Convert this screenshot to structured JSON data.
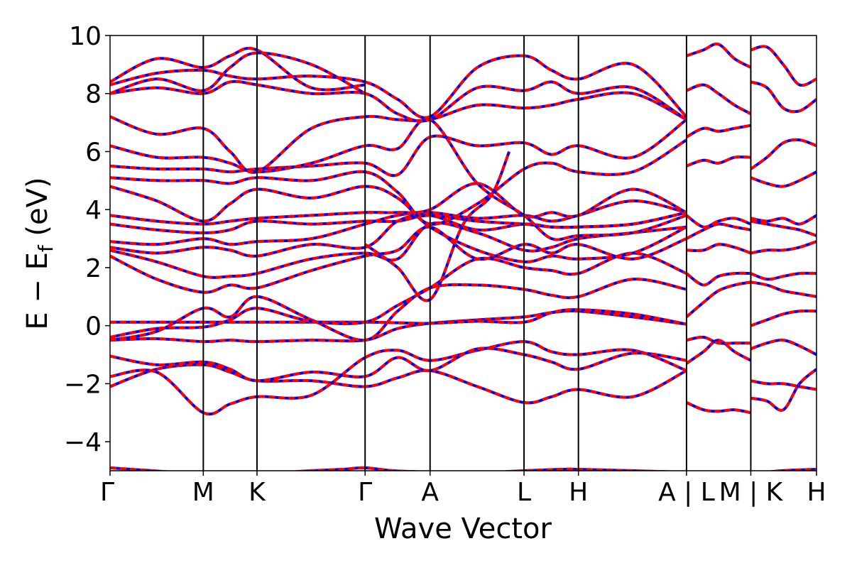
{
  "chart_data": {
    "type": "line",
    "title": "",
    "xlabel": "Wave Vector",
    "ylabel_main": "E − E",
    "ylabel_sub": "f",
    "ylabel_unit": " (eV)",
    "ylim": [
      -5,
      10
    ],
    "yticks": [
      {
        "value": -4,
        "label": "−4"
      },
      {
        "value": -2,
        "label": "−2"
      },
      {
        "value": 0,
        "label": "0"
      },
      {
        "value": 2,
        "label": "2"
      },
      {
        "value": 4,
        "label": "4"
      },
      {
        "value": 6,
        "label": "6"
      },
      {
        "value": 8,
        "label": "8"
      },
      {
        "value": 10,
        "label": "10"
      }
    ],
    "xlim": [
      0,
      100
    ],
    "kpoints": [
      {
        "label": "Γ",
        "x": 0
      },
      {
        "label": "M",
        "x": 13.2
      },
      {
        "label": "K",
        "x": 20.8
      },
      {
        "label": "Γ",
        "x": 36.1
      },
      {
        "label": "A",
        "x": 45.3
      },
      {
        "label": "L",
        "x": 58.6
      },
      {
        "label": "H",
        "x": 66.3
      },
      {
        "label": "A | L",
        "x": 81.6
      },
      {
        "label": "M | K",
        "x": 90.7
      },
      {
        "label": "H",
        "x": 100
      }
    ],
    "colors": {
      "spin_up": "#0000ff",
      "spin_down": "#ff0000",
      "kline": "#000000"
    },
    "series": [
      {
        "name": "",
        "x": [
          0,
          6.6,
          13.2,
          17,
          20.8,
          28.5,
          36.1,
          40.7,
          45.3,
          52,
          58.6,
          62.5,
          66.3,
          74,
          81.6
        ],
        "y": [
          -2.1,
          -1.5,
          -1.35,
          -1.6,
          -1.9,
          -1.9,
          -2.1,
          -1.8,
          -1.55,
          -2.1,
          -2.65,
          -2.45,
          -2.2,
          -2.45,
          -1.55
        ]
      },
      {
        "name": "",
        "x": [
          0,
          6.6,
          13.2,
          17,
          20.8,
          28.5,
          36.1,
          40.7,
          45.3,
          52,
          58.6,
          62.5,
          66.3,
          74,
          81.6
        ],
        "y": [
          -1.75,
          -1.6,
          -3.0,
          -2.7,
          -2.45,
          -2.4,
          -1.1,
          -0.85,
          -1.2,
          -0.85,
          -0.55,
          -0.9,
          -1.0,
          -0.85,
          -1.55
        ]
      },
      {
        "name": "",
        "x": [
          0,
          6.6,
          13.2,
          17,
          20.8,
          28.5,
          36.1,
          40.7,
          45.3,
          52,
          58.6,
          62.5,
          66.3,
          74,
          81.6
        ],
        "y": [
          -1.05,
          -1.35,
          -1.25,
          -1.5,
          -1.9,
          -1.6,
          -1.75,
          -1.1,
          -1.55,
          -0.8,
          -1.0,
          -1.25,
          -1.5,
          -0.95,
          -1.2
        ]
      },
      {
        "name": "",
        "x": [
          0,
          6.6,
          13.2,
          17,
          20.8,
          28.5,
          36.1,
          40.7,
          45.3,
          52,
          58.6,
          62.5,
          66.3,
          74,
          81.6
        ],
        "y": [
          -0.5,
          -0.45,
          -0.55,
          -0.5,
          -0.55,
          -0.5,
          -0.5,
          -0.1,
          0.08,
          0.2,
          0.3,
          0.45,
          0.5,
          0.3,
          0.05
        ]
      },
      {
        "name": "",
        "x": [
          0,
          6.6,
          13.2,
          17,
          20.8,
          28.5,
          36.1,
          40.7,
          45.3,
          52,
          58.6,
          62.5,
          66.3,
          74,
          81.6
        ],
        "y": [
          0.12,
          0.12,
          0.12,
          0.12,
          0.12,
          0.12,
          0.12,
          0.1,
          0.08,
          0.15,
          0.12,
          0.45,
          0.55,
          0.4,
          0.05
        ]
      },
      {
        "name": "",
        "x": [
          0,
          6.6,
          13.2,
          17,
          20.8,
          28.5,
          36.1,
          40.7,
          45.3,
          52,
          58.6,
          62.5,
          66.3,
          74,
          81.6
        ],
        "y": [
          -0.5,
          -0.2,
          0.6,
          0.3,
          1.0,
          0.2,
          -0.5,
          0.5,
          1.3,
          1.4,
          1.25,
          1.05,
          1.0,
          1.6,
          1.25
        ]
      },
      {
        "name": "",
        "x": [
          0,
          6.6,
          13.2,
          17,
          20.8,
          28.5,
          36.1,
          40.7,
          45.3,
          52,
          58.6,
          62.5,
          66.3,
          74,
          81.6
        ],
        "y": [
          -0.4,
          -0.1,
          -0.05,
          0.2,
          0.6,
          0.15,
          0.12,
          0.7,
          1.3,
          2.3,
          2.0,
          1.9,
          1.8,
          2.5,
          1.8
        ]
      },
      {
        "name": "",
        "x": [
          0,
          6.6,
          13.2,
          17,
          20.8,
          28.5,
          36.1,
          40.7,
          45.3,
          52,
          58.6,
          62.5,
          66.3,
          74,
          81.6
        ],
        "y": [
          2.4,
          1.6,
          1.15,
          1.4,
          1.3,
          1.9,
          2.4,
          2.6,
          3.4,
          2.3,
          2.8,
          2.5,
          2.8,
          2.3,
          3.0
        ]
      },
      {
        "name": "",
        "x": [
          0,
          6.6,
          13.2,
          17,
          20.8,
          28.5,
          36.1,
          40.7,
          45.3,
          52,
          58.6,
          62.5,
          66.3,
          74,
          81.6
        ],
        "y": [
          2.6,
          2.2,
          1.7,
          1.7,
          1.8,
          2.3,
          2.5,
          2.3,
          3.5,
          3.2,
          2.6,
          2.7,
          3.0,
          3.2,
          3.4
        ]
      },
      {
        "name": "",
        "x": [
          0,
          6.6,
          13.2,
          17,
          20.8,
          28.5,
          36.1,
          40.7,
          45.3,
          52,
          58.6,
          62.5,
          66.3,
          74,
          81.6
        ],
        "y": [
          2.7,
          2.5,
          2.7,
          2.6,
          2.4,
          2.8,
          2.7,
          3.6,
          3.8,
          3.3,
          3.5,
          3.4,
          3.4,
          3.5,
          3.9
        ]
      },
      {
        "name": "",
        "x": [
          0,
          6.6,
          13.2,
          17,
          20.8,
          28.5,
          36.1,
          40.7,
          45.3,
          52,
          58.6,
          62.5,
          66.3,
          74,
          81.6
        ],
        "y": [
          2.9,
          2.8,
          3.0,
          2.8,
          2.9,
          3.0,
          3.5,
          3.8,
          3.9,
          3.7,
          3.8,
          3.6,
          3.8,
          4.3,
          3.9
        ]
      },
      {
        "name": "",
        "x": [
          0,
          6.6,
          13.2,
          17,
          20.8,
          28.5,
          36.1,
          40.7,
          45.3,
          52,
          58.6,
          62.5,
          66.3,
          74,
          81.6
        ],
        "y": [
          3.5,
          3.3,
          3.2,
          3.3,
          3.6,
          3.5,
          3.6,
          3.6,
          3.8,
          3.6,
          3.5,
          3.4,
          3.4,
          3.5,
          3.9
        ]
      },
      {
        "name": "",
        "x": [
          0,
          6.6,
          13.2,
          17,
          20.8,
          28.5,
          36.1,
          40.7,
          45.3,
          52,
          58.6,
          62.5,
          66.3,
          74,
          81.6
        ],
        "y": [
          3.8,
          3.6,
          3.5,
          3.6,
          3.7,
          3.8,
          3.9,
          3.9,
          4.0,
          4.9,
          3.8,
          3.9,
          3.8,
          4.7,
          3.9
        ]
      },
      {
        "name": "",
        "x": [
          0,
          6.6,
          13.2,
          17,
          20.8,
          28.5,
          36.1,
          40.7,
          45.3,
          52,
          58.6,
          62.5,
          66.3,
          74,
          81.6
        ],
        "y": [
          4.8,
          4.3,
          3.6,
          4.2,
          4.7,
          4.4,
          4.8,
          4.4,
          3.4,
          2.6,
          2.2,
          2.4,
          2.3,
          2.5,
          3.4
        ]
      },
      {
        "name": "",
        "x": [
          0,
          6.6,
          13.2,
          17,
          20.8,
          28.5,
          36.1,
          40.7,
          45.3,
          52,
          58.6,
          62.5,
          66.3,
          74,
          81.6
        ],
        "y": [
          5.1,
          5.0,
          5.0,
          4.9,
          5.1,
          5.0,
          5.3,
          4.6,
          3.5,
          4.2,
          5.4,
          5.6,
          5.3,
          5.3,
          6.4
        ]
      },
      {
        "name": "",
        "x": [
          0,
          6.6,
          13.2,
          17,
          20.8,
          28.5,
          36.1,
          40.7,
          45.3,
          52,
          58.6,
          62.5,
          66.3,
          74,
          81.6
        ],
        "y": [
          5.5,
          5.4,
          5.4,
          5.3,
          5.4,
          5.5,
          5.6,
          5.2,
          6.5,
          6.2,
          6.3,
          5.9,
          6.2,
          5.8,
          7.1
        ]
      },
      {
        "name": "",
        "x": [
          0,
          6.6,
          13.2,
          17,
          20.8,
          28.5,
          36.1,
          40.7,
          45.3,
          52,
          58.6,
          62.5,
          66.3,
          74,
          81.6
        ],
        "y": [
          6.2,
          5.8,
          5.8,
          5.6,
          5.3,
          5.6,
          6.2,
          6.1,
          7.1,
          4.9,
          3.8,
          3.0,
          3.1,
          3.2,
          3.8
        ]
      },
      {
        "name": "",
        "x": [
          0,
          6.6,
          13.2,
          17,
          20.8,
          28.5,
          36.1,
          40.7,
          45.3,
          52,
          58.6,
          62.5,
          66.3,
          74,
          81.6
        ],
        "y": [
          7.2,
          6.6,
          6.8,
          6.0,
          5.3,
          6.8,
          7.2,
          7.1,
          7.1,
          7.6,
          7.5,
          7.6,
          7.8,
          8.0,
          7.1
        ]
      },
      {
        "name": "",
        "x": [
          0,
          6.6,
          13.2,
          17,
          20.8,
          28.5,
          36.1,
          40.7,
          45.3,
          52,
          58.6,
          62.5,
          66.3,
          74,
          81.6
        ],
        "y": [
          8.0,
          8.2,
          8.0,
          8.4,
          8.3,
          8.0,
          8.0,
          7.3,
          7.1,
          8.2,
          8.1,
          8.4,
          8.0,
          8.2,
          7.1
        ]
      },
      {
        "name": "",
        "x": [
          0,
          6.6,
          13.2,
          17,
          20.8,
          28.5,
          36.1,
          40.7,
          45.3,
          52,
          58.6,
          62.5,
          66.3,
          74,
          81.6
        ],
        "y": [
          8.3,
          8.7,
          8.8,
          8.6,
          8.5,
          8.6,
          8.4,
          7.8,
          7.2,
          8.9,
          9.3,
          8.8,
          8.5,
          9.0,
          7.2
        ]
      },
      {
        "name": "",
        "x": [
          0,
          6.6,
          13.2,
          17,
          20.8,
          28.5,
          36.1
        ],
        "y": [
          8.4,
          9.2,
          8.9,
          9.3,
          9.5,
          8.2,
          8.3
        ]
      },
      {
        "name": "",
        "x": [
          0,
          6.6,
          13.2,
          17,
          20.8,
          28.5,
          36.1
        ],
        "y": [
          8.0,
          8.5,
          8.1,
          8.9,
          9.4,
          9.0,
          8.0
        ]
      },
      {
        "name": "",
        "x": [
          36.1,
          40.7,
          45.3,
          50,
          54,
          56.5
        ],
        "y": [
          2.8,
          2.0,
          0.9,
          3.5,
          4.5,
          6.0
        ]
      },
      {
        "name": "",
        "x": [
          81.6,
          84,
          86.1,
          88.4,
          90.7
        ],
        "y": [
          -2.65,
          -2.9,
          -2.95,
          -2.9,
          -3.0
        ]
      },
      {
        "name": "",
        "x": [
          81.6,
          84,
          86.1,
          88.4,
          90.7
        ],
        "y": [
          -1.3,
          -0.9,
          -0.5,
          -0.9,
          -1.2
        ]
      },
      {
        "name": "",
        "x": [
          81.6,
          84,
          86.1,
          88.4,
          90.7
        ],
        "y": [
          -0.5,
          -0.4,
          -0.6,
          -0.6,
          -0.6
        ]
      },
      {
        "name": "",
        "x": [
          81.6,
          84,
          86.1,
          88.4,
          90.7
        ],
        "y": [
          0.3,
          0.8,
          1.2,
          1.4,
          1.5
        ]
      },
      {
        "name": "",
        "x": [
          81.6,
          84,
          86.1,
          88.4,
          90.7
        ],
        "y": [
          1.8,
          1.4,
          1.7,
          1.8,
          1.8
        ]
      },
      {
        "name": "",
        "x": [
          81.6,
          84,
          86.1,
          88.4,
          90.7
        ],
        "y": [
          2.6,
          2.6,
          2.8,
          2.7,
          2.5
        ]
      },
      {
        "name": "",
        "x": [
          81.6,
          84,
          86.1,
          88.4,
          90.7
        ],
        "y": [
          3.0,
          3.3,
          3.5,
          3.4,
          3.3
        ]
      },
      {
        "name": "",
        "x": [
          81.6,
          84,
          86.1,
          88.4,
          90.7
        ],
        "y": [
          3.8,
          3.4,
          3.6,
          3.7,
          3.5
        ]
      },
      {
        "name": "",
        "x": [
          81.6,
          84,
          86.1,
          88.4,
          90.7
        ],
        "y": [
          5.5,
          5.7,
          5.6,
          5.8,
          5.8
        ]
      },
      {
        "name": "",
        "x": [
          81.6,
          84,
          86.1,
          88.4,
          90.7
        ],
        "y": [
          6.5,
          6.8,
          6.7,
          6.8,
          6.9
        ]
      },
      {
        "name": "",
        "x": [
          81.6,
          84,
          86.1,
          88.4,
          90.7
        ],
        "y": [
          8.1,
          8.3,
          8.0,
          7.6,
          7.3
        ]
      },
      {
        "name": "",
        "x": [
          81.6,
          84,
          86.1,
          88.4,
          90.7
        ],
        "y": [
          9.3,
          9.5,
          9.7,
          9.2,
          8.9
        ]
      },
      {
        "name": "",
        "x": [
          90.7,
          93,
          95.3,
          97.6,
          100
        ],
        "y": [
          -2.5,
          -2.6,
          -2.9,
          -2.0,
          -1.5
        ]
      },
      {
        "name": "",
        "x": [
          90.7,
          93,
          95.3,
          97.6,
          100
        ],
        "y": [
          -1.9,
          -2.0,
          -2.0,
          -2.1,
          -2.2
        ]
      },
      {
        "name": "",
        "x": [
          90.7,
          93,
          95.3,
          97.6,
          100
        ],
        "y": [
          -0.8,
          -0.6,
          -0.5,
          -0.7,
          -1.0
        ]
      },
      {
        "name": "",
        "x": [
          90.7,
          93,
          95.3,
          97.6,
          100
        ],
        "y": [
          0.0,
          0.2,
          0.4,
          0.5,
          0.5
        ]
      },
      {
        "name": "",
        "x": [
          90.7,
          93,
          95.3,
          97.6,
          100
        ],
        "y": [
          1.5,
          1.4,
          1.2,
          1.1,
          1.0
        ]
      },
      {
        "name": "",
        "x": [
          90.7,
          93,
          95.3,
          97.6,
          100
        ],
        "y": [
          1.8,
          1.6,
          1.7,
          1.8,
          1.8
        ]
      },
      {
        "name": "",
        "x": [
          90.7,
          93,
          95.3,
          97.6,
          100
        ],
        "y": [
          2.5,
          2.6,
          2.6,
          2.7,
          2.9
        ]
      },
      {
        "name": "",
        "x": [
          90.7,
          93,
          95.3,
          97.6,
          100
        ],
        "y": [
          3.6,
          3.5,
          3.4,
          3.3,
          3.1
        ]
      },
      {
        "name": "",
        "x": [
          90.7,
          93,
          95.3,
          97.6,
          100
        ],
        "y": [
          3.7,
          3.6,
          3.7,
          3.5,
          3.8
        ]
      },
      {
        "name": "",
        "x": [
          90.7,
          93,
          95.3,
          97.6,
          100
        ],
        "y": [
          5.1,
          4.9,
          4.8,
          5.0,
          5.3
        ]
      },
      {
        "name": "",
        "x": [
          90.7,
          93,
          95.3,
          97.6,
          100
        ],
        "y": [
          5.4,
          5.8,
          6.3,
          6.4,
          6.2
        ]
      },
      {
        "name": "",
        "x": [
          90.7,
          93,
          95.3,
          97.6,
          100
        ],
        "y": [
          8.4,
          8.2,
          7.5,
          7.4,
          7.8
        ]
      },
      {
        "name": "",
        "x": [
          90.7,
          93,
          95.3,
          97.6,
          100
        ],
        "y": [
          9.5,
          9.6,
          9.0,
          8.3,
          8.5
        ]
      },
      {
        "name": "",
        "x": [
          0,
          3,
          6,
          9,
          13.2,
          20.8,
          28.5,
          33,
          36.1,
          40,
          45.3,
          50,
          58.6,
          64,
          66.3,
          74,
          81.6,
          86.1,
          90.7,
          95,
          100
        ],
        "y": [
          -4.9,
          -4.95,
          -5.0,
          -5.05,
          -5.1,
          -5.1,
          -5.0,
          -4.95,
          -4.9,
          -5.0,
          -5.05,
          -5.1,
          -5.0,
          -4.95,
          -4.95,
          -5.0,
          -5.05,
          -5.05,
          -5.1,
          -5.0,
          -4.95
        ]
      }
    ]
  }
}
